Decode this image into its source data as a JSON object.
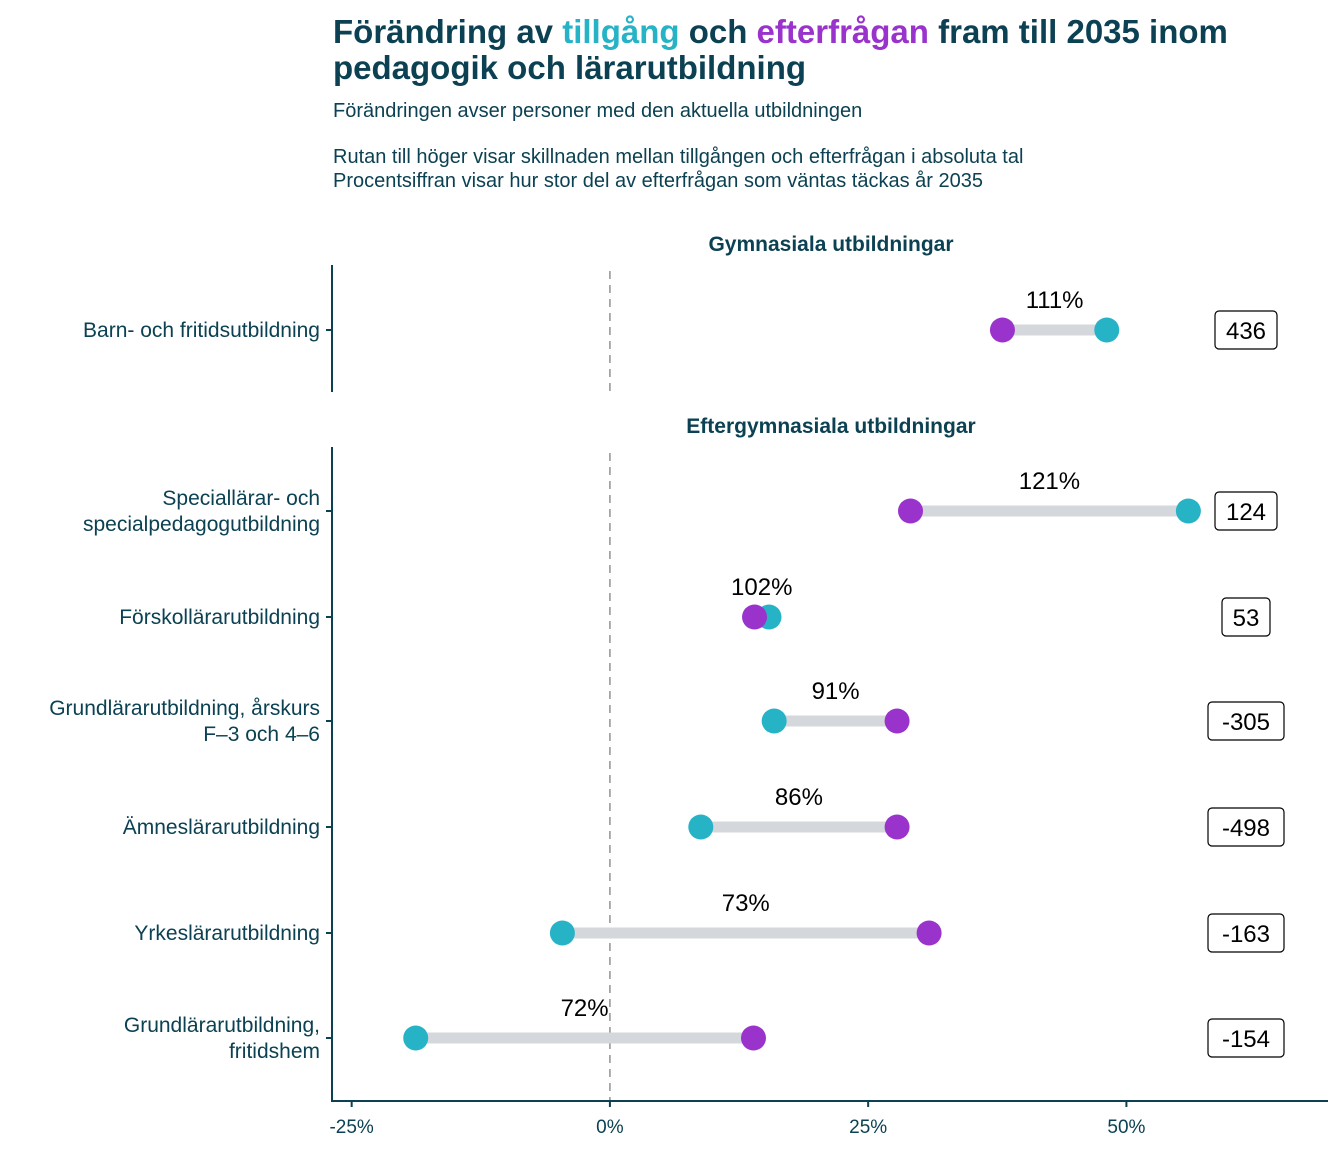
{
  "title": {
    "part1": "Förändring av ",
    "supply_word": "tillgång",
    "part2": " och ",
    "demand_word": "efterfrågan",
    "part3": " fram till 2035 inom",
    "line2": "pedagogik och lärarutbildning"
  },
  "subtitle": {
    "line1": "Förändringen avser personer med den aktuella utbildningen",
    "line2": "Rutan till höger visar skillnaden mellan tillgången och efterfrågan i absoluta tal",
    "line3": "Procentsiffran visar hur stor del av efterfrågan som väntas täckas år 2035"
  },
  "colors": {
    "supply": "#26b3c6",
    "demand": "#9933cc",
    "segment": "#d4d7db",
    "text": "#0b4152"
  },
  "chart_data": {
    "type": "dumbbell",
    "title": "Förändring av tillgång och efterfrågan fram till 2035 inom pedagogik och lärarutbildning",
    "xlabel": "",
    "ylabel": "",
    "xlim": [
      -27,
      70
    ],
    "x_ticks": [
      {
        "value": -25,
        "label": "-25%"
      },
      {
        "value": 0,
        "label": "0%"
      },
      {
        "value": 25,
        "label": "25%"
      },
      {
        "value": 50,
        "label": "50%"
      }
    ],
    "reference_line": {
      "value": 0,
      "style": "dashed"
    },
    "legend": {
      "placement": "title",
      "entries": [
        {
          "name": "tillgång",
          "color": "#26b3c6"
        },
        {
          "name": "efterfrågan",
          "color": "#9933cc"
        }
      ]
    },
    "panels": [
      {
        "title": "Gymnasiala utbildningar",
        "rows": [
          {
            "label_lines": [
              "Barn- och fritidsutbildning"
            ],
            "supply": 48.1,
            "demand": 38.0,
            "coverage_label": "111%",
            "difference": "436"
          }
        ]
      },
      {
        "title": "Eftergymnasiala utbildningar",
        "rows": [
          {
            "label_lines": [
              "Speciallärar- och",
              "specialpedagogutbildning"
            ],
            "supply": 56.0,
            "demand": 29.1,
            "coverage_label": "121%",
            "difference": "124"
          },
          {
            "label_lines": [
              "Förskollärarutbildning"
            ],
            "supply": 15.4,
            "demand": 14.0,
            "coverage_label": "102%",
            "difference": "53"
          },
          {
            "label_lines": [
              "Grundlärarutbildning, årskurs",
              "F–3 och 4–6"
            ],
            "supply": 15.9,
            "demand": 27.8,
            "coverage_label": "91%",
            "difference": "-305"
          },
          {
            "label_lines": [
              "Ämneslärarutbildning"
            ],
            "supply": 8.8,
            "demand": 27.8,
            "coverage_label": "86%",
            "difference": "-498"
          },
          {
            "label_lines": [
              "Yrkeslärarutbildning"
            ],
            "supply": -4.6,
            "demand": 30.9,
            "coverage_label": "73%",
            "difference": "-163"
          },
          {
            "label_lines": [
              "Grundlärarutbildning,",
              "fritidshem"
            ],
            "supply": -18.8,
            "demand": 13.9,
            "coverage_label": "72%",
            "difference": "-154"
          }
        ]
      }
    ]
  }
}
